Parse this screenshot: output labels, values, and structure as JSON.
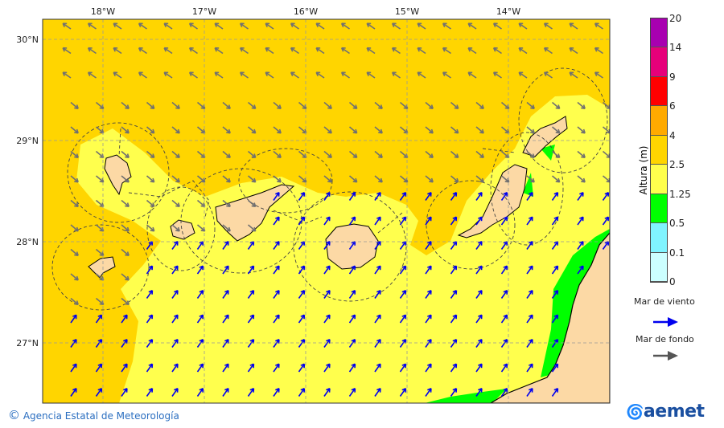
{
  "map": {
    "lon_labels": [
      "18°W",
      "17°W",
      "16°W",
      "15°W",
      "14°W"
    ],
    "lat_labels": [
      "30°N",
      "29°N",
      "28°N",
      "27°N"
    ],
    "colors": {
      "sea_25_4": "#ffd500",
      "sea_125_25": "#ffff4d",
      "sea_05_125": "#00ff00",
      "land": "#fcd9a5",
      "wind_sea": "#0000ee",
      "swell": "#707070"
    }
  },
  "legend": {
    "title": "Altura (m)",
    "levels": [
      "20",
      "14",
      "9",
      "6",
      "4",
      "2.5",
      "1.25",
      "0.5",
      "0.1",
      "0"
    ],
    "colors": [
      "#a800b0",
      "#e6007a",
      "#ff0000",
      "#ffaa00",
      "#ffd500",
      "#ffff4d",
      "#00ff00",
      "#80f4ff",
      "#ccffff"
    ],
    "wind_sea_label": "Mar de viento",
    "swell_label": "Mar de fondo"
  },
  "footer": {
    "copyright": "Agencia Estatal de Meteorología",
    "copyright_symbol": "©",
    "logo_text": "aemet"
  }
}
